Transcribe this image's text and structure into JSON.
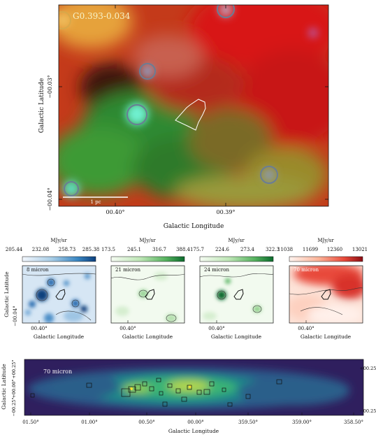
{
  "main": {
    "title": "G0.393-0.034",
    "xlabel": "Galactic Longitude",
    "ylabel": "Galactic Latitude",
    "xticks": [
      "00.40°",
      "00.39°"
    ],
    "yticks": [
      "−00.03°",
      "−00.04°"
    ],
    "scalebar_label": "1 pc",
    "colors": {
      "red": "#d21010",
      "green": "#1fb64a",
      "cyan": "#58f0c8",
      "ring": "#6a7d95"
    }
  },
  "panels": [
    {
      "label": "8 micron",
      "unit": "MJy/sr",
      "ticks": [
        "205.44",
        "232.08",
        "258.73",
        "285.38"
      ],
      "cmap": [
        "#f3f7fd",
        "#a8cde6",
        "#3b87c3",
        "#0b3f7d"
      ],
      "xlabel": "Galactic Longitude",
      "xtick": "00.40°"
    },
    {
      "label": "21 micron",
      "unit": "MJy/sr",
      "ticks": [
        "173.5",
        "245.1",
        "316.7",
        "388.4"
      ],
      "cmap": [
        "#f5fbf2",
        "#bde6b5",
        "#55b25e",
        "#0b6b2d"
      ],
      "xlabel": "Galactic Longitude",
      "xtick": "00.40°"
    },
    {
      "label": "24 micron",
      "unit": "MJy/sr",
      "ticks": [
        "175.7",
        "224.6",
        "273.4",
        "322.3"
      ],
      "cmap": [
        "#f5fbf2",
        "#bde6b5",
        "#55b25e",
        "#0b6b2d"
      ],
      "xlabel": "Galactic Longitude",
      "xtick": "00.40°"
    },
    {
      "label": "70 micron",
      "unit": "MJy/sr",
      "ticks": [
        "11038",
        "11699",
        "12360",
        "13021"
      ],
      "cmap": [
        "#fff4ef",
        "#fbb398",
        "#e8493a",
        "#8b0d13"
      ],
      "xlabel": "Galactic Longitude",
      "xtick": "00.40°"
    }
  ],
  "panels_ylabel": "Galactic Latitude",
  "panels_ytick": "−00.04°",
  "bottom": {
    "label": "70 micron",
    "xlabel": "Galactic Longitude",
    "ylabel": "Galactic Latitude",
    "xticks": [
      "01.50°",
      "01.00°",
      "00.50°",
      "00.00°",
      "359.50°",
      "359.00°",
      "358.50°"
    ],
    "yticks_left": [
      "+00.25°",
      "+00.00°",
      "−00.25°"
    ],
    "yticks_right": [
      "+00.25°",
      "−00.25°"
    ]
  },
  "chart_data": {
    "type": "heatmap",
    "title": "G0.393-0.034",
    "xlabel": "Galactic Longitude",
    "ylabel": "Galactic Latitude",
    "panels": [
      {
        "name": "8 micron",
        "colorbar": [
          205.44,
          232.08,
          258.73,
          285.38
        ]
      },
      {
        "name": "21 micron",
        "colorbar": [
          173.5,
          245.1,
          316.7,
          388.4
        ]
      },
      {
        "name": "24 micron",
        "colorbar": [
          175.7,
          224.6,
          273.4,
          322.3
        ]
      },
      {
        "name": "70 micron",
        "colorbar": [
          11038,
          11699,
          12360,
          13021
        ]
      }
    ]
  }
}
